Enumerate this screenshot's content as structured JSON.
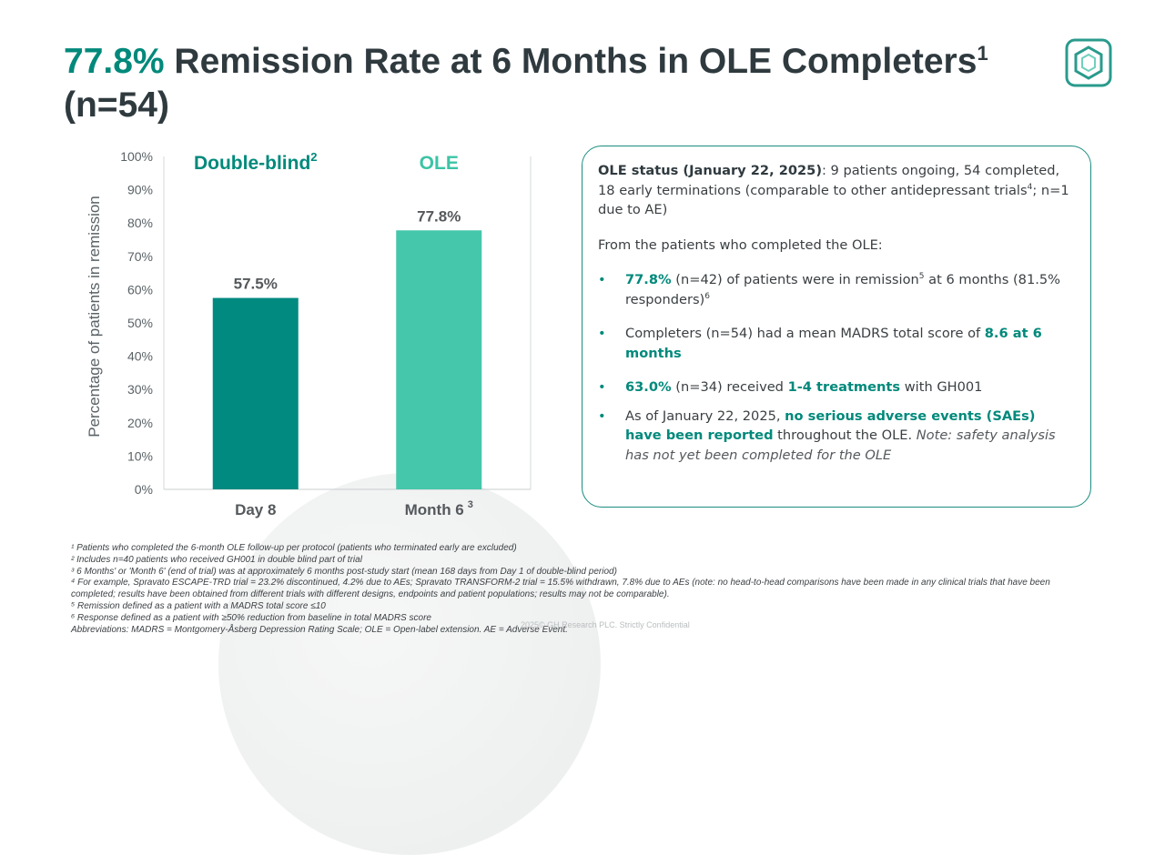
{
  "title": {
    "highlight": "77.8%",
    "text": " Remission Rate at 6 Months in OLE Completers",
    "sup": "1",
    "line2": "(n=54)"
  },
  "chart_data": {
    "type": "bar",
    "categories": [
      "Day 8",
      "Month 6"
    ],
    "category_sups": [
      "",
      "3"
    ],
    "values": [
      57.5,
      77.8
    ],
    "value_labels": [
      "57.5%",
      "77.8%"
    ],
    "bar_colors": [
      "#008a80",
      "#45c7ab"
    ],
    "group_labels": [
      "Double-blind",
      "OLE"
    ],
    "group_label_sups": [
      "2",
      ""
    ],
    "group_label_colors": [
      "#00897b",
      "#3cc4a5"
    ],
    "ylabel": "Percentage of patients in remission",
    "ylim": [
      0,
      100
    ],
    "yticks": [
      "0%",
      "10%",
      "20%",
      "30%",
      "40%",
      "50%",
      "60%",
      "70%",
      "80%",
      "90%",
      "100%"
    ],
    "grid": false
  },
  "panel": {
    "status_label": "OLE status (January 22, 2025)",
    "status_text_1": ": 9 patients ongoing, 54 completed, 18 early terminations (comparable to other antidepressant trials",
    "status_sup": "4",
    "status_text_2": "; n=1 due to AE)",
    "intro": "From the patients who completed the OLE:",
    "b1_strong": "77.8%",
    "b1_text_1": " (n=42) of patients were in remission",
    "b1_sup_1": "5",
    "b1_text_2": " at 6 months (81.5% responders)",
    "b1_sup_2": "6",
    "b2_text": "Completers (n=54) had a mean MADRS total score of ",
    "b2_strong": "8.6 at 6 months",
    "b3_strong_1": "63.0%",
    "b3_text_1": " (n=34) received ",
    "b3_strong_2": "1-4 treatments",
    "b3_text_2": " with GH001",
    "b4_text_1": "As of January 22, 2025, ",
    "b4_strong": "no serious adverse events (SAEs) have been reported",
    "b4_text_2": " throughout the OLE. ",
    "b4_note": "Note: safety analysis has not yet been completed for the OLE",
    "bullet": "•"
  },
  "footnotes": [
    "¹ Patients who completed the 6-month OLE follow-up per protocol (patients who terminated early are excluded)",
    "² Includes n=40 patients who received GH001 in double blind part of trial",
    "³ 6 Months' or 'Month 6' (end of trial) was at approximately 6 months post-study start (mean 168 days from Day 1 of double-blind period)",
    "⁴ For example, Spravato ESCAPE-TRD trial = 23.2% discontinued, 4.2% due to AEs; Spravato TRANSFORM-2 trial = 15.5% withdrawn, 7.8% due to AEs (note: no head-to-head comparisons have been made in any clinical trials that have been completed; results have been obtained from different trials with different designs, endpoints and patient populations; results may not be comparable).",
    "⁵ Remission defined as a patient with a MADRS total score ≤10",
    "⁶ Response defined as a patient with ≥50% reduction from baseline in total MADRS score",
    "Abbreviations: MADRS = Montgomery-Åsberg Depression Rating Scale; OLE = Open-label extension. AE = Adverse Event."
  ],
  "copyright": "2025© GH Research PLC. Strictly Confidential",
  "colors": {
    "accent": "#00897b",
    "bar_day8": "#008a80",
    "bar_month6": "#45c7ab"
  },
  "logo_icon": "hexagon-logo-icon"
}
